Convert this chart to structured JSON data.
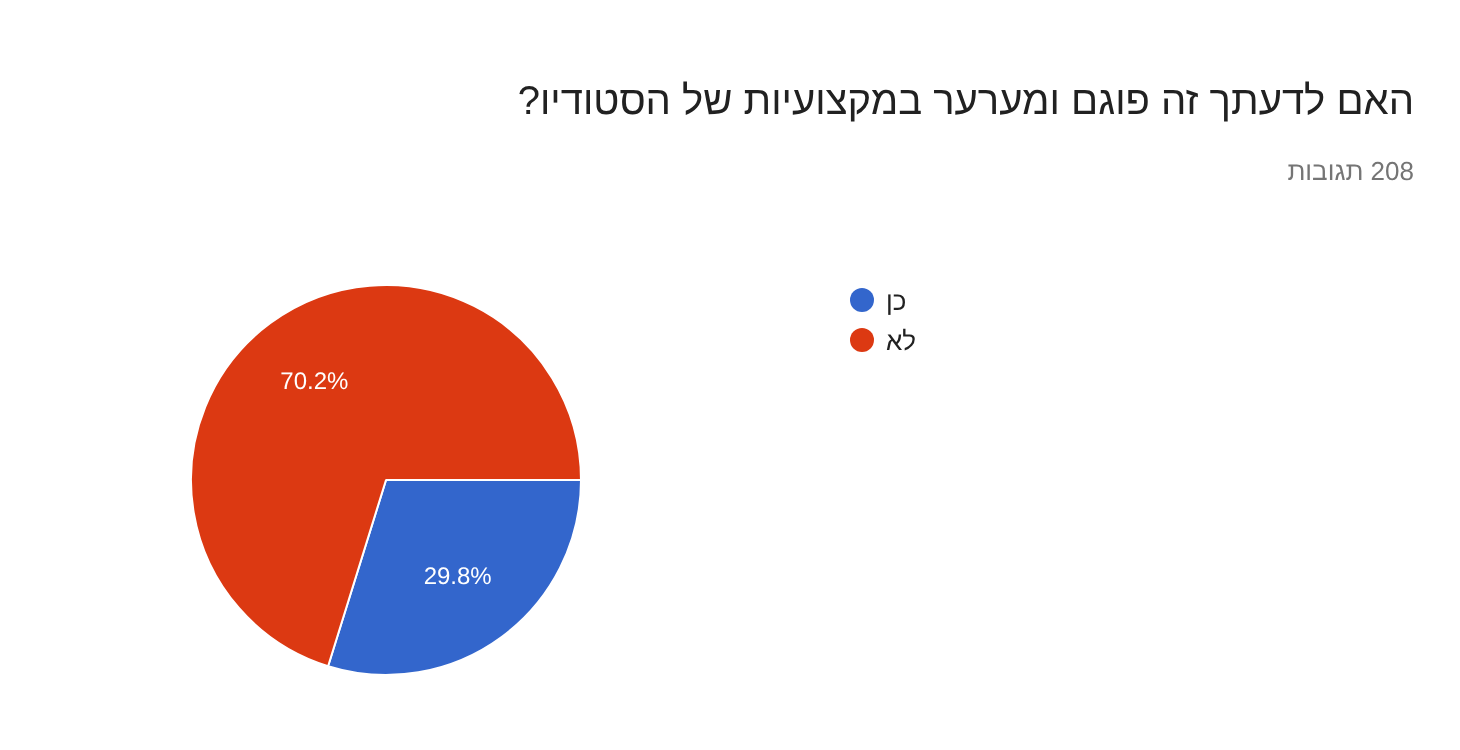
{
  "chart_data": {
    "type": "pie",
    "title": "האם לדעתך זה פוגם ומערער במקצועיות של הסטודיו?",
    "subtitle": "208 תגובות",
    "categories": [
      "כן",
      "לא"
    ],
    "values": [
      29.8,
      70.2
    ],
    "colors": [
      "#3366cc",
      "#dc3912"
    ],
    "value_labels": [
      "29.8%",
      "70.2%"
    ],
    "legend": "right"
  }
}
